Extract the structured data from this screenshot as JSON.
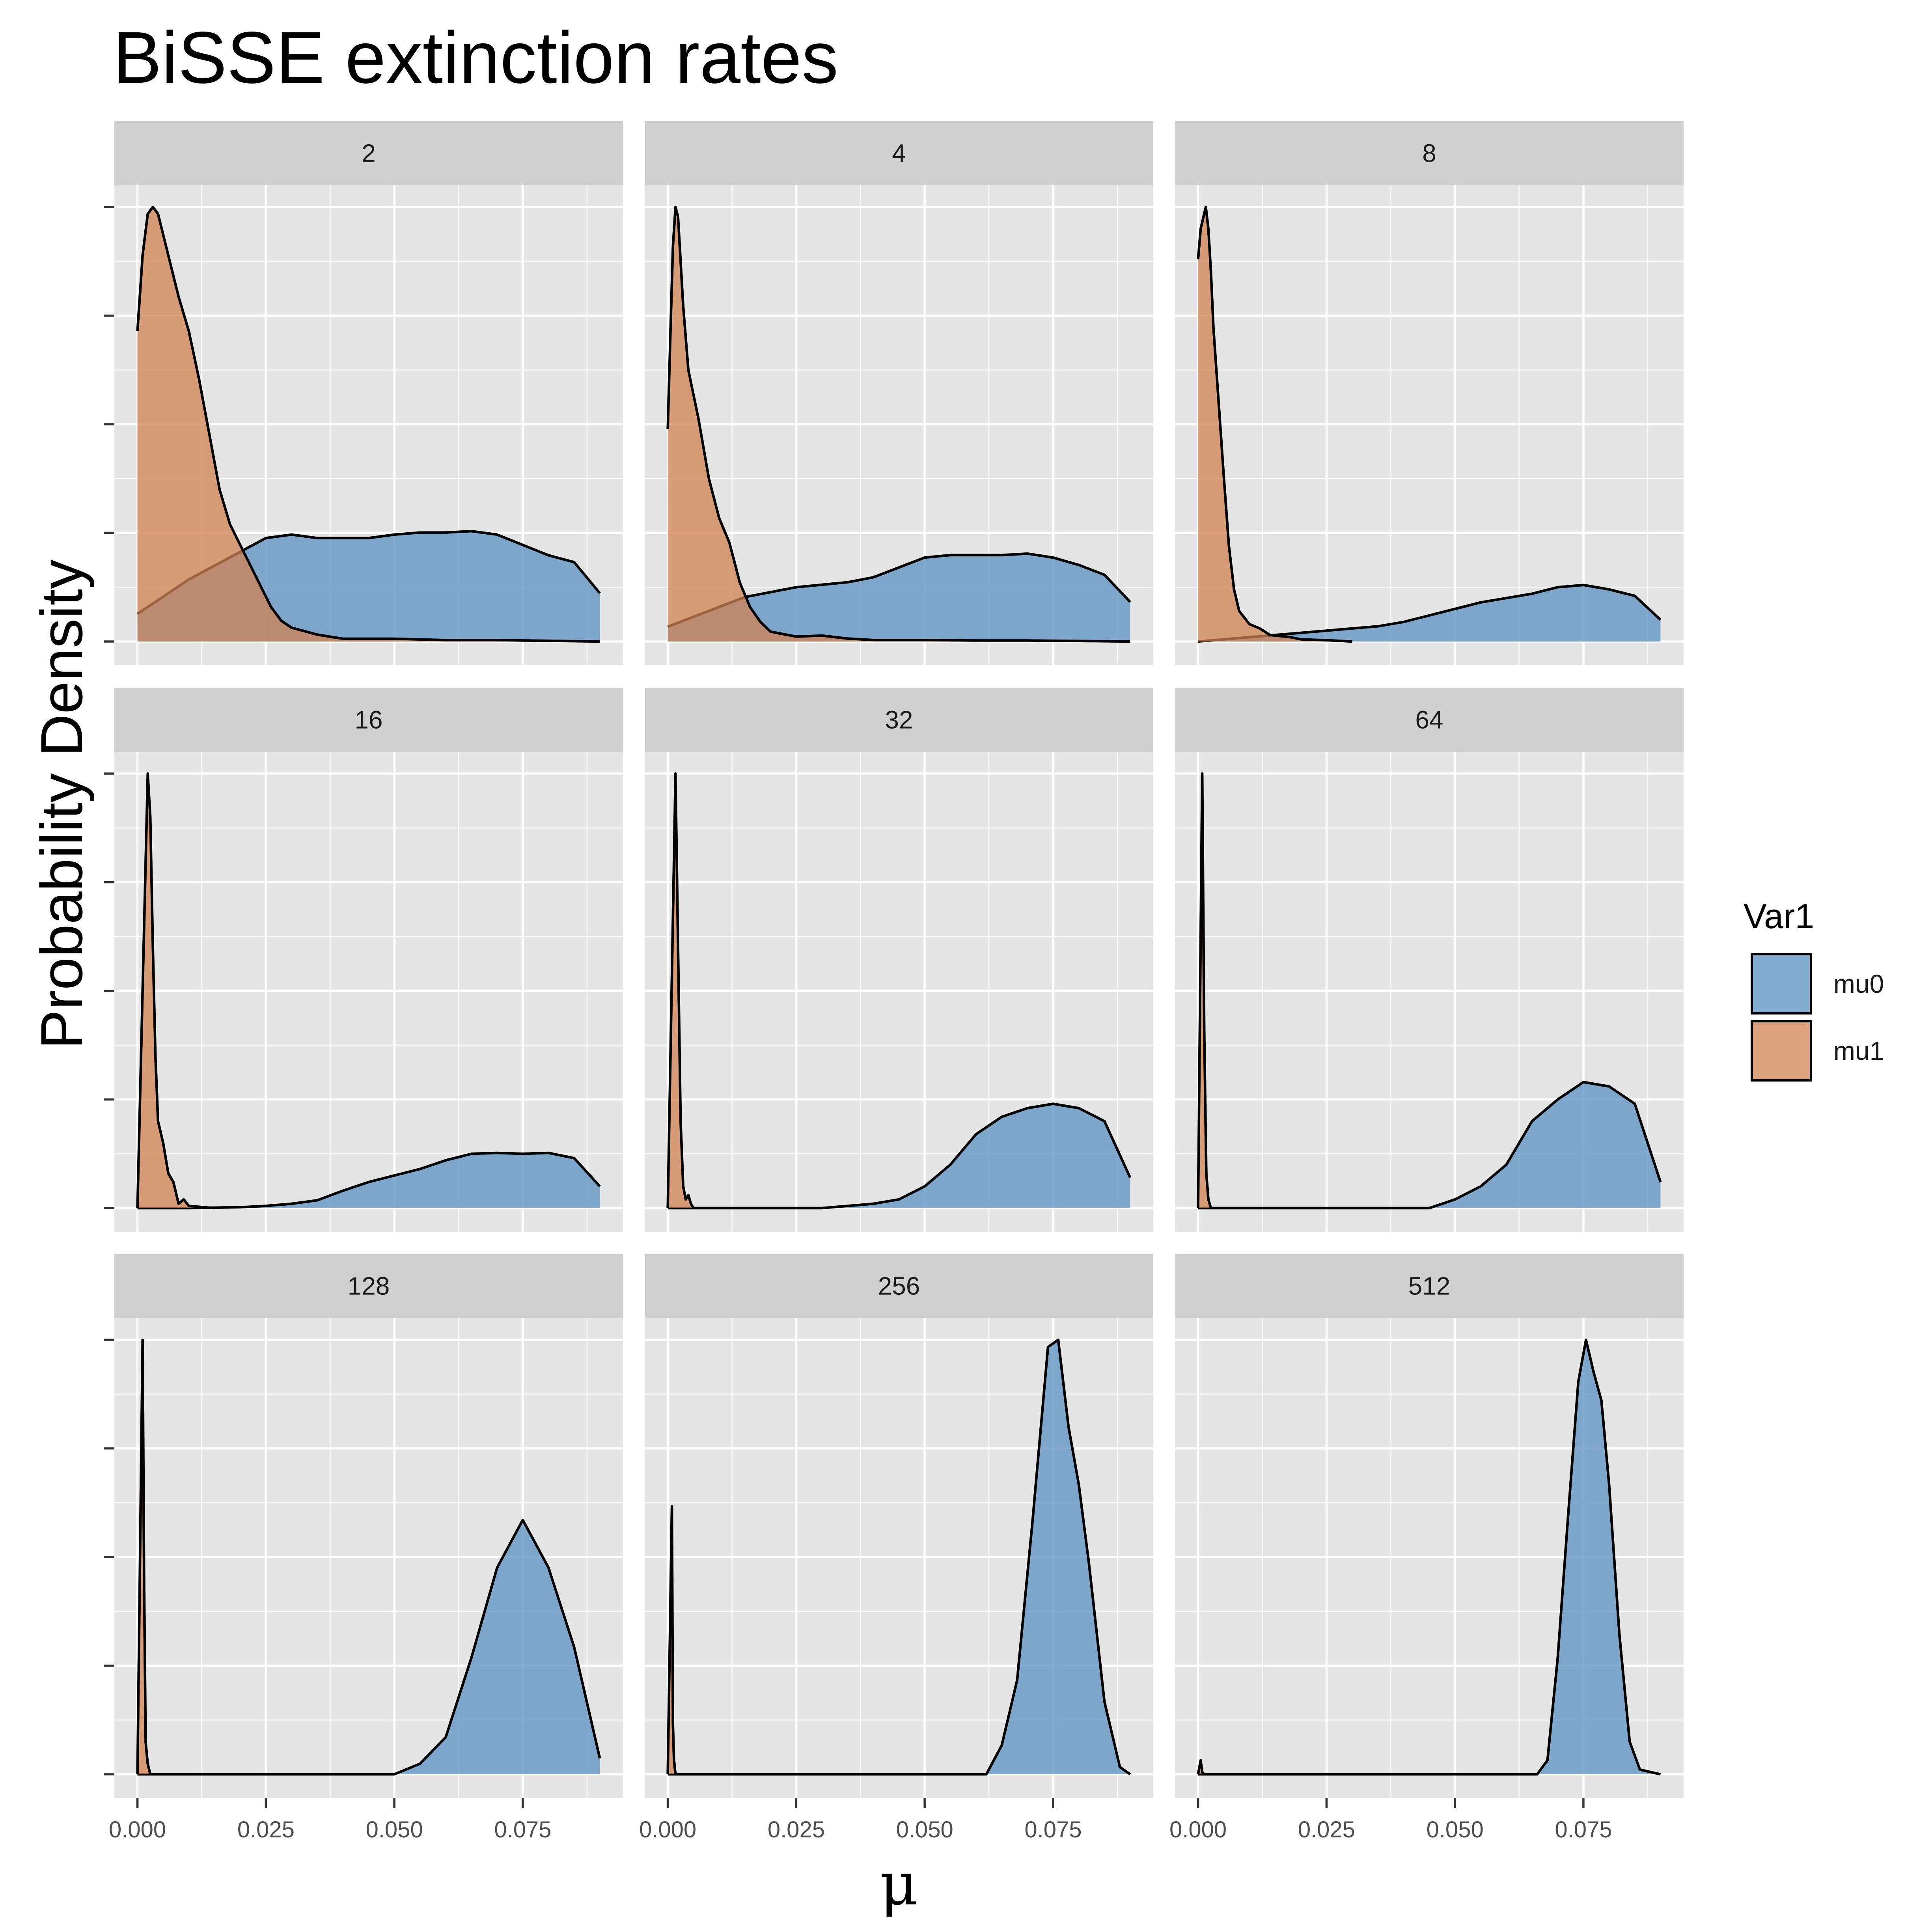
{
  "chart_data": {
    "type": "area",
    "title": "BiSSE extinction rates",
    "xlabel": "μ",
    "ylabel": "Probability Density",
    "xlim": [
      -0.0045,
      0.0945
    ],
    "x_ticks": [
      0.0,
      0.025,
      0.05,
      0.075
    ],
    "x_tick_labels": [
      "0.000",
      "0.025",
      "0.050",
      "0.075"
    ],
    "y_axis": "free scales per facet row; 5 unlabeled ticks per row",
    "grid": true,
    "legend": {
      "title": "Var1",
      "position": "right",
      "entries": [
        {
          "name": "mu0",
          "color": "#5b8fc0"
        },
        {
          "name": "mu1",
          "color": "#d08252"
        }
      ]
    },
    "facets": [
      {
        "label": "2",
        "series": [
          {
            "name": "mu0",
            "x": [
              0.0,
              0.005,
              0.01,
              0.015,
              0.02,
              0.025,
              0.03,
              0.035,
              0.04,
              0.045,
              0.05,
              0.055,
              0.06,
              0.065,
              0.07,
              0.075,
              0.08,
              0.085,
              0.09
            ],
            "y": [
              0.04,
              0.065,
              0.09,
              0.11,
              0.13,
              0.15,
              0.155,
              0.15,
              0.15,
              0.15,
              0.155,
              0.158,
              0.158,
              0.16,
              0.155,
              0.14,
              0.125,
              0.115,
              0.07
            ]
          },
          {
            "name": "mu1",
            "x": [
              0.0,
              0.001,
              0.002,
              0.003,
              0.004,
              0.006,
              0.008,
              0.01,
              0.012,
              0.014,
              0.016,
              0.018,
              0.02,
              0.022,
              0.024,
              0.026,
              0.028,
              0.03,
              0.035,
              0.04,
              0.05,
              0.06,
              0.07,
              0.08,
              0.09
            ],
            "y": [
              0.45,
              0.56,
              0.62,
              0.63,
              0.62,
              0.56,
              0.5,
              0.45,
              0.38,
              0.3,
              0.22,
              0.17,
              0.14,
              0.11,
              0.08,
              0.05,
              0.03,
              0.02,
              0.01,
              0.004,
              0.004,
              0.002,
              0.002,
              0.001,
              0.0
            ]
          }
        ]
      },
      {
        "label": "4",
        "series": [
          {
            "name": "mu0",
            "x": [
              0.0,
              0.005,
              0.01,
              0.015,
              0.02,
              0.025,
              0.03,
              0.035,
              0.04,
              0.045,
              0.05,
              0.055,
              0.06,
              0.065,
              0.07,
              0.075,
              0.08,
              0.085,
              0.09
            ],
            "y": [
              0.03,
              0.05,
              0.07,
              0.09,
              0.1,
              0.11,
              0.115,
              0.12,
              0.13,
              0.15,
              0.17,
              0.175,
              0.175,
              0.175,
              0.178,
              0.17,
              0.155,
              0.135,
              0.08
            ]
          },
          {
            "name": "mu1",
            "x": [
              0.0,
              0.0005,
              0.001,
              0.0015,
              0.002,
              0.003,
              0.004,
              0.006,
              0.008,
              0.01,
              0.012,
              0.014,
              0.016,
              0.018,
              0.02,
              0.025,
              0.03,
              0.035,
              0.04,
              0.05,
              0.06,
              0.07,
              0.08,
              0.09
            ],
            "y": [
              0.43,
              0.62,
              0.8,
              0.88,
              0.86,
              0.68,
              0.55,
              0.45,
              0.33,
              0.25,
              0.2,
              0.12,
              0.07,
              0.04,
              0.02,
              0.01,
              0.012,
              0.006,
              0.003,
              0.003,
              0.002,
              0.002,
              0.001,
              0.0
            ]
          }
        ]
      },
      {
        "label": "8",
        "series": [
          {
            "name": "mu0",
            "x": [
              0.0,
              0.005,
              0.01,
              0.015,
              0.02,
              0.025,
              0.03,
              0.035,
              0.04,
              0.045,
              0.05,
              0.055,
              0.06,
              0.065,
              0.07,
              0.075,
              0.08,
              0.085,
              0.09
            ],
            "y": [
              0.0,
              0.005,
              0.01,
              0.015,
              0.02,
              0.025,
              0.03,
              0.035,
              0.045,
              0.06,
              0.075,
              0.09,
              0.1,
              0.11,
              0.125,
              0.13,
              0.12,
              0.105,
              0.05
            ]
          },
          {
            "name": "mu1",
            "x": [
              0.0,
              0.0005,
              0.0015,
              0.002,
              0.0025,
              0.003,
              0.004,
              0.005,
              0.006,
              0.007,
              0.008,
              0.01,
              0.012,
              0.014,
              0.018,
              0.02,
              0.025,
              0.03
            ],
            "y": [
              0.88,
              0.95,
              1.0,
              0.95,
              0.85,
              0.72,
              0.55,
              0.38,
              0.22,
              0.12,
              0.07,
              0.04,
              0.03,
              0.015,
              0.01,
              0.005,
              0.003,
              0.0
            ]
          }
        ]
      },
      {
        "label": "16",
        "series": [
          {
            "name": "mu0",
            "x": [
              0.0,
              0.01,
              0.02,
              0.025,
              0.03,
              0.035,
              0.04,
              0.045,
              0.05,
              0.055,
              0.06,
              0.065,
              0.07,
              0.075,
              0.08,
              0.085,
              0.09
            ],
            "y": [
              0.0,
              0.0,
              0.002,
              0.005,
              0.01,
              0.018,
              0.04,
              0.06,
              0.075,
              0.09,
              0.11,
              0.125,
              0.127,
              0.125,
              0.127,
              0.115,
              0.05
            ]
          },
          {
            "name": "mu1",
            "x": [
              0.0,
              0.002,
              0.0025,
              0.003,
              0.0035,
              0.004,
              0.005,
              0.006,
              0.007,
              0.008,
              0.009,
              0.01,
              0.012,
              0.015
            ],
            "y": [
              0.0,
              1.0,
              0.9,
              0.6,
              0.35,
              0.2,
              0.15,
              0.08,
              0.06,
              0.01,
              0.02,
              0.005,
              0.003,
              0.0
            ]
          }
        ]
      },
      {
        "label": "32",
        "series": [
          {
            "name": "mu0",
            "x": [
              0.0,
              0.03,
              0.04,
              0.045,
              0.05,
              0.055,
              0.06,
              0.065,
              0.07,
              0.075,
              0.08,
              0.085,
              0.09
            ],
            "y": [
              0.0,
              0.0,
              0.01,
              0.02,
              0.05,
              0.1,
              0.17,
              0.21,
              0.23,
              0.24,
              0.23,
              0.2,
              0.07
            ]
          },
          {
            "name": "mu1",
            "x": [
              0.0,
              0.0015,
              0.002,
              0.0025,
              0.003,
              0.0035,
              0.004,
              0.0045,
              0.005
            ],
            "y": [
              0.0,
              1.0,
              0.6,
              0.2,
              0.05,
              0.02,
              0.03,
              0.01,
              0.0
            ]
          }
        ]
      },
      {
        "label": "64",
        "series": [
          {
            "name": "mu0",
            "x": [
              0.0,
              0.045,
              0.05,
              0.055,
              0.06,
              0.065,
              0.07,
              0.075,
              0.08,
              0.085,
              0.09
            ],
            "y": [
              0.0,
              0.0,
              0.02,
              0.05,
              0.1,
              0.2,
              0.25,
              0.29,
              0.28,
              0.24,
              0.06
            ]
          },
          {
            "name": "mu1",
            "x": [
              0.0,
              0.0008,
              0.0012,
              0.0016,
              0.002,
              0.0025
            ],
            "y": [
              0.0,
              1.0,
              0.4,
              0.08,
              0.02,
              0.0
            ]
          }
        ]
      },
      {
        "label": "128",
        "series": [
          {
            "name": "mu0",
            "x": [
              0.0,
              0.05,
              0.055,
              0.06,
              0.065,
              0.07,
              0.075,
              0.08,
              0.085,
              0.09
            ],
            "y": [
              0.0,
              0.0,
              0.02,
              0.07,
              0.22,
              0.39,
              0.48,
              0.39,
              0.24,
              0.03
            ]
          },
          {
            "name": "mu1",
            "x": [
              0.0,
              0.001,
              0.0013,
              0.0016,
              0.002,
              0.0025
            ],
            "y": [
              0.0,
              0.82,
              0.35,
              0.06,
              0.02,
              0.0
            ]
          }
        ]
      },
      {
        "label": "256",
        "series": [
          {
            "name": "mu0",
            "x": [
              0.0,
              0.062,
              0.065,
              0.068,
              0.071,
              0.074,
              0.076,
              0.078,
              0.08,
              0.082,
              0.085,
              0.088,
              0.09
            ],
            "y": [
              0.0,
              0.0,
              0.04,
              0.13,
              0.35,
              0.59,
              0.6,
              0.48,
              0.4,
              0.29,
              0.1,
              0.01,
              0.0
            ]
          },
          {
            "name": "mu1",
            "x": [
              0.0,
              0.0008,
              0.001,
              0.0012,
              0.0015
            ],
            "y": [
              0.0,
              0.37,
              0.07,
              0.02,
              0.0
            ]
          }
        ]
      },
      {
        "label": "512",
        "series": [
          {
            "name": "mu0",
            "x": [
              0.0,
              0.066,
              0.068,
              0.07,
              0.072,
              0.074,
              0.0755,
              0.077,
              0.0785,
              0.08,
              0.082,
              0.084,
              0.086,
              0.09
            ],
            "y": [
              0.0,
              0.0,
              0.03,
              0.25,
              0.55,
              0.84,
              0.93,
              0.86,
              0.8,
              0.62,
              0.3,
              0.07,
              0.01,
              0.0
            ]
          },
          {
            "name": "mu1",
            "x": [
              0.0,
              0.0005,
              0.0008,
              0.0012
            ],
            "y": [
              0.0,
              0.03,
              0.005,
              0.0
            ]
          }
        ]
      }
    ]
  }
}
